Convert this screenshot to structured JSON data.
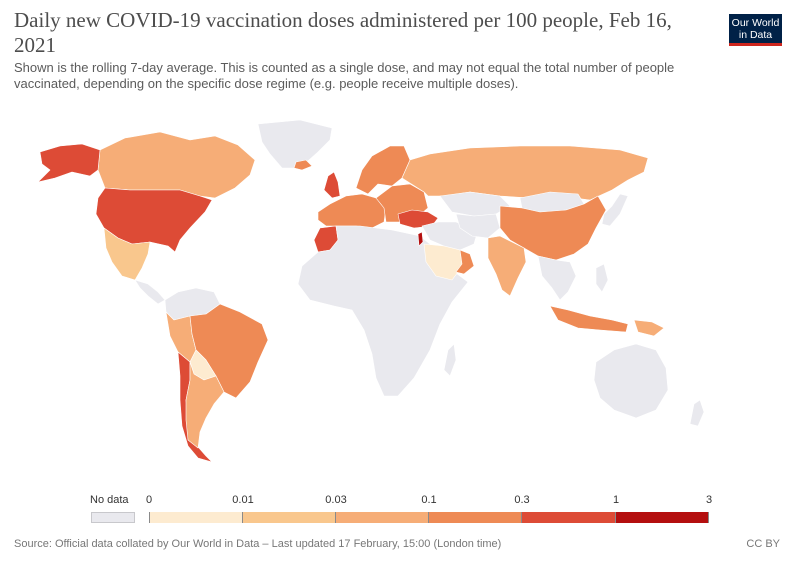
{
  "title": "Daily new COVID-19 vaccination doses administered per 100 people, Feb 16, 2021",
  "subtitle": "Shown is the rolling 7-day average. This is counted as a single dose, and may not equal the total number of people vaccinated, depending on the specific dose regime (e.g. people receive multiple doses).",
  "logo": {
    "line1": "Our World",
    "line2": "in Data"
  },
  "legend": {
    "no_data_label": "No data",
    "ticks": [
      "0",
      "0.01",
      "0.03",
      "0.1",
      "0.3",
      "1",
      "3"
    ],
    "bins": [
      {
        "color": "#fdebd0",
        "from": "0",
        "to": "0.01"
      },
      {
        "color": "#f9c78d",
        "from": "0.01",
        "to": "0.03"
      },
      {
        "color": "#f6ad77",
        "from": "0.03",
        "to": "0.1"
      },
      {
        "color": "#ee8a55",
        "from": "0.1",
        "to": "0.3"
      },
      {
        "color": "#dd4b36",
        "from": "0.3",
        "to": "1"
      },
      {
        "color": "#b40f0f",
        "from": "1",
        "to": "3"
      }
    ],
    "no_data_color": "#e9e9ee"
  },
  "footer": {
    "source": "Source: Official data collated by Our World in Data – Last updated 17 February, 15:00 (London time)",
    "license": "CC BY"
  },
  "map_regions": [
    {
      "name": "greenland",
      "bin": "nodata"
    },
    {
      "name": "canada",
      "bin": "0.03-0.1"
    },
    {
      "name": "alaska",
      "bin": "0.3-1"
    },
    {
      "name": "united-states",
      "bin": "0.3-1"
    },
    {
      "name": "mexico",
      "bin": "0.01-0.03"
    },
    {
      "name": "central-america",
      "bin": "nodata"
    },
    {
      "name": "colombia-venezuela",
      "bin": "nodata"
    },
    {
      "name": "peru",
      "bin": "0.03-0.1"
    },
    {
      "name": "brazil",
      "bin": "0.1-0.3"
    },
    {
      "name": "bolivia",
      "bin": "0-0.01"
    },
    {
      "name": "chile",
      "bin": "0.3-1"
    },
    {
      "name": "argentina",
      "bin": "0.03-0.1"
    },
    {
      "name": "iceland",
      "bin": "0.1-0.3"
    },
    {
      "name": "uk",
      "bin": "0.3-1"
    },
    {
      "name": "scandinavia",
      "bin": "0.1-0.3"
    },
    {
      "name": "western-europe",
      "bin": "0.1-0.3"
    },
    {
      "name": "eastern-europe",
      "bin": "0.1-0.3"
    },
    {
      "name": "russia",
      "bin": "0.03-0.1"
    },
    {
      "name": "morocco",
      "bin": "0.3-1"
    },
    {
      "name": "africa",
      "bin": "nodata"
    },
    {
      "name": "turkey",
      "bin": "0.3-1"
    },
    {
      "name": "israel",
      "bin": "1-3"
    },
    {
      "name": "middle-east",
      "bin": "nodata"
    },
    {
      "name": "saudi-arabia",
      "bin": "0-0.01"
    },
    {
      "name": "oman-uae",
      "bin": "0.1-0.3"
    },
    {
      "name": "kazakhstan",
      "bin": "nodata"
    },
    {
      "name": "central-asia",
      "bin": "nodata"
    },
    {
      "name": "mongolia",
      "bin": "nodata"
    },
    {
      "name": "china",
      "bin": "0.1-0.3"
    },
    {
      "name": "india",
      "bin": "0.03-0.1"
    },
    {
      "name": "south-east-asia",
      "bin": "nodata"
    },
    {
      "name": "indonesia",
      "bin": "0.1-0.3"
    },
    {
      "name": "philippines",
      "bin": "nodata"
    },
    {
      "name": "japan-korea",
      "bin": "nodata"
    },
    {
      "name": "australia",
      "bin": "nodata"
    },
    {
      "name": "new-zealand",
      "bin": "nodata"
    },
    {
      "name": "papua",
      "bin": "0.03-0.1"
    },
    {
      "name": "madagascar",
      "bin": "nodata"
    }
  ]
}
